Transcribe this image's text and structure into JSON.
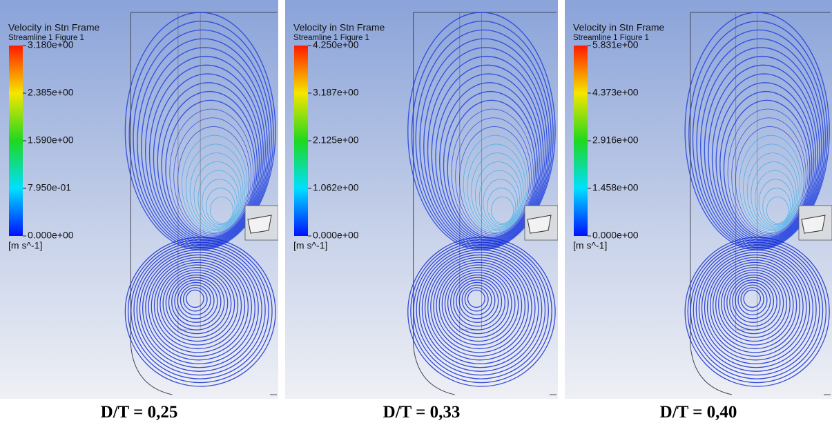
{
  "panels": [
    {
      "legend": {
        "title": "Velocity in Stn Frame",
        "subtitle": "Streamline 1 Figure 1",
        "ticks": [
          "3.180e+00",
          "2.385e+00",
          "1.590e+00",
          "7.950e-01",
          "0.000e+00"
        ],
        "unit": "[m s^-1]"
      },
      "caption": "D/T = 0,25"
    },
    {
      "legend": {
        "title": "Velocity in Stn Frame",
        "subtitle": "Streamline 1 Figure 1",
        "ticks": [
          "4.250e+00",
          "3.187e+00",
          "2.125e+00",
          "1.062e+00",
          "0.000e+00"
        ],
        "unit": "[m s^-1]"
      },
      "caption": "D/T = 0,33"
    },
    {
      "legend": {
        "title": "Velocity in Stn Frame",
        "subtitle": "Streamline 1 Figure 1",
        "ticks": [
          "5.831e+00",
          "4.373e+00",
          "2.916e+00",
          "1.458e+00",
          "0.000e+00"
        ],
        "unit": "[m s^-1]"
      },
      "caption": "D/T = 0,40"
    }
  ]
}
